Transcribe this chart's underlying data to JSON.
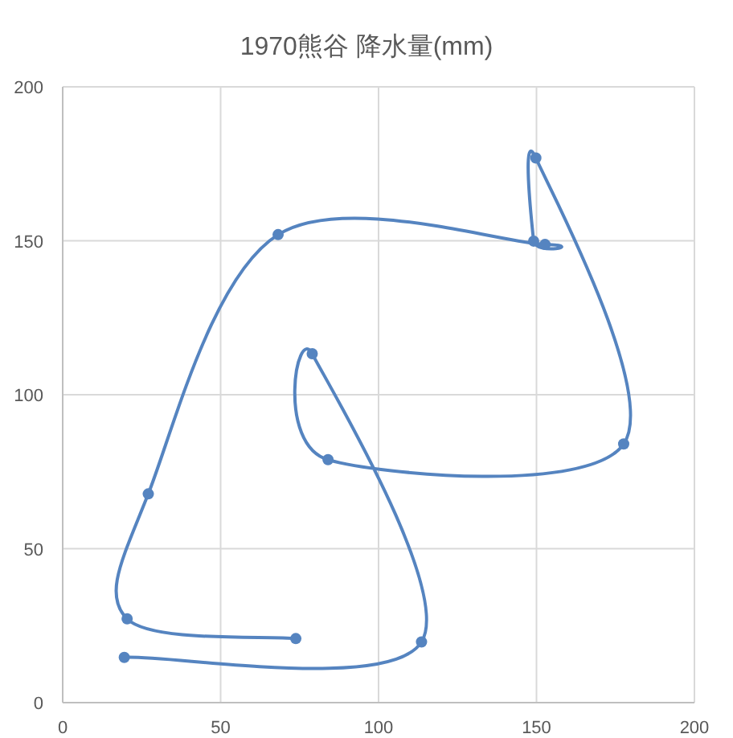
{
  "chart_data": {
    "type": "line",
    "title": "1970熊谷 降水量(mm)",
    "series": [
      {
        "color": "#5584c0",
        "x": [
          73.8,
          20.4,
          27.1,
          68.2,
          152.7,
          149.1,
          149.8,
          177.6,
          84,
          79,
          113.6,
          19.5
        ],
        "values": [
          20.8,
          27.2,
          67.8,
          152,
          148.8,
          149.9,
          176.9,
          84,
          78.9,
          113.3,
          19.7,
          14.7
        ]
      }
    ],
    "xlim": [
      0,
      200
    ],
    "xticks": [
      0,
      50,
      100,
      150,
      200
    ],
    "ylim": [
      0,
      200
    ],
    "yticks": [
      0,
      50,
      100,
      150,
      200
    ],
    "grid": true,
    "marker": "circle",
    "line_style": "solid"
  }
}
